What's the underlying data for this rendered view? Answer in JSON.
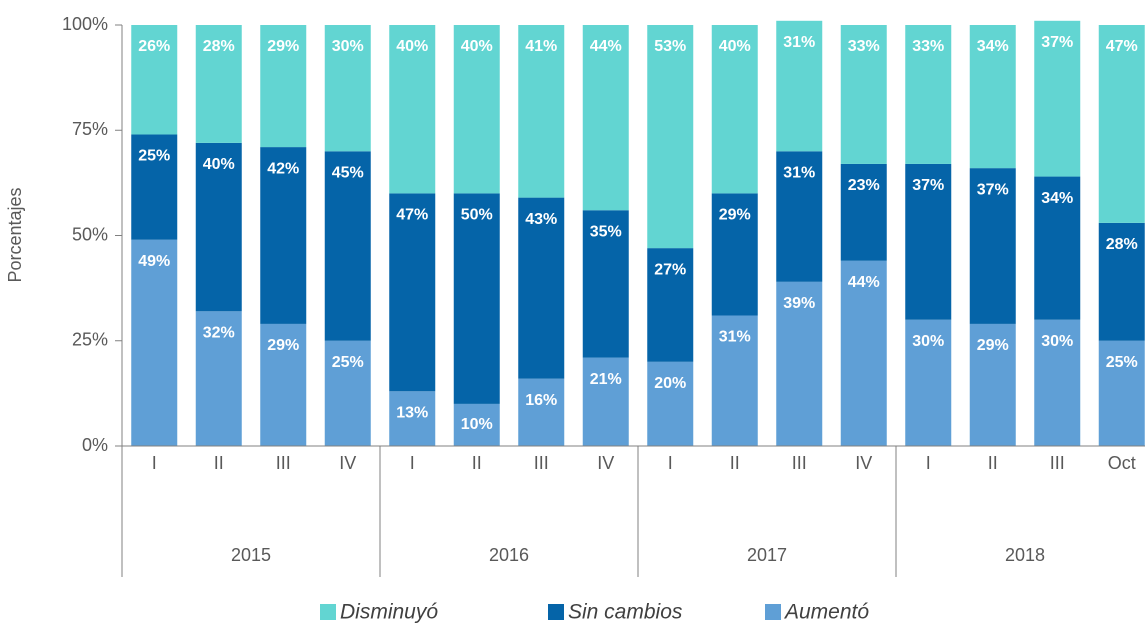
{
  "chart_data": {
    "type": "stacked_bar",
    "y_label": "Porcentajes",
    "categories": [
      "I",
      "II",
      "III",
      "IV",
      "I",
      "II",
      "III",
      "IV",
      "I",
      "II",
      "III",
      "IV",
      "I",
      "II",
      "III",
      "Oct"
    ],
    "groups": [
      "2015",
      "2016",
      "2017",
      "2018"
    ],
    "series": [
      {
        "name": "Aumentó",
        "color": "#5f9fd6",
        "values": [
          49,
          32,
          29,
          25,
          13,
          10,
          16,
          21,
          20,
          31,
          39,
          44,
          30,
          29,
          30,
          25
        ],
        "value_labels": [
          "49%",
          "32%",
          "29%",
          "25%",
          "13%",
          "10%",
          "16%",
          "21%",
          "20%",
          "31%",
          "39%",
          "44%",
          "30%",
          "29%",
          "30%",
          "25%"
        ]
      },
      {
        "name": "Sin cambios",
        "color": "#0564a8",
        "values": [
          25,
          40,
          42,
          45,
          47,
          50,
          43,
          35,
          27,
          29,
          31,
          23,
          37,
          37,
          34,
          28
        ],
        "value_labels": [
          "25%",
          "40%",
          "42%",
          "45%",
          "47%",
          "50%",
          "43%",
          "35%",
          "27%",
          "29%",
          "31%",
          "23%",
          "37%",
          "37%",
          "34%",
          "28%"
        ]
      },
      {
        "name": "Disminuyó",
        "color": "#62d5d2",
        "values": [
          26,
          28,
          29,
          30,
          40,
          40,
          41,
          44,
          53,
          40,
          31,
          33,
          33,
          34,
          37,
          47
        ],
        "value_labels": [
          "26%",
          "28%",
          "29%",
          "30%",
          "40%",
          "40%",
          "41%",
          "44%",
          "53%",
          "40%",
          "31%",
          "33%",
          "33%",
          "34%",
          "37%",
          "47%"
        ]
      }
    ],
    "legend_order": [
      2,
      1,
      0
    ],
    "ylim": [
      0,
      100
    ],
    "yticks": [
      {
        "value": 0,
        "label": "0%"
      },
      {
        "value": 25,
        "label": "25%"
      },
      {
        "value": 50,
        "label": "50%"
      },
      {
        "value": 75,
        "label": "75%"
      },
      {
        "value": 100,
        "label": "100%"
      }
    ]
  }
}
